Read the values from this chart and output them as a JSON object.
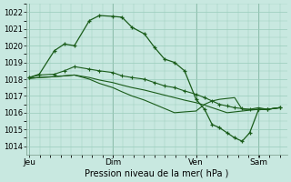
{
  "bg_color": "#c8e8e0",
  "grid_color": "#99ccbb",
  "line_color": "#1a5c1a",
  "title": "Pression niveau de la mer( hPa )",
  "ylim": [
    1013.5,
    1022.5
  ],
  "yticks": [
    1014,
    1015,
    1016,
    1017,
    1018,
    1019,
    1020,
    1021,
    1022
  ],
  "xlim": [
    0,
    1.0
  ],
  "day_labels": [
    "Jeu",
    "Dim",
    "Ven",
    "Sam"
  ],
  "day_positions": [
    0.0,
    0.333,
    0.666,
    0.916
  ],
  "series1_x": [
    0.0,
    0.04,
    0.1,
    0.14,
    0.18,
    0.24,
    0.28,
    0.333,
    0.37,
    0.41,
    0.46,
    0.5,
    0.54,
    0.58,
    0.62,
    0.666,
    0.7,
    0.73,
    0.76,
    0.79,
    0.82,
    0.85,
    0.88,
    0.916,
    0.95,
    1.0
  ],
  "series1_y": [
    1018.1,
    1018.3,
    1019.7,
    1020.1,
    1020.0,
    1021.5,
    1021.8,
    1021.75,
    1021.7,
    1021.1,
    1020.7,
    1019.9,
    1019.2,
    1019.0,
    1018.5,
    1016.8,
    1016.2,
    1015.3,
    1015.1,
    1014.8,
    1014.5,
    1014.3,
    1014.8,
    1016.2,
    1016.2,
    1016.3
  ],
  "series2_x": [
    0.0,
    0.04,
    0.1,
    0.14,
    0.18,
    0.24,
    0.28,
    0.333,
    0.37,
    0.41,
    0.46,
    0.5,
    0.54,
    0.58,
    0.62,
    0.666,
    0.7,
    0.73,
    0.76,
    0.79,
    0.82,
    0.85,
    0.88,
    0.916,
    0.95,
    1.0
  ],
  "series2_y": [
    1018.1,
    1018.25,
    1018.3,
    1018.5,
    1018.75,
    1018.6,
    1018.5,
    1018.4,
    1018.2,
    1018.1,
    1018.0,
    1017.8,
    1017.6,
    1017.5,
    1017.3,
    1017.1,
    1016.9,
    1016.7,
    1016.5,
    1016.4,
    1016.3,
    1016.25,
    1016.2,
    1016.2,
    1016.2,
    1016.3
  ],
  "series3_x": [
    0.0,
    0.04,
    0.1,
    0.14,
    0.18,
    0.24,
    0.28,
    0.333,
    0.37,
    0.41,
    0.46,
    0.5,
    0.54,
    0.58,
    0.62,
    0.666,
    0.7,
    0.73,
    0.76,
    0.79,
    0.82,
    0.85,
    0.88,
    0.916,
    0.95,
    1.0
  ],
  "series3_y": [
    1018.05,
    1018.1,
    1018.15,
    1018.2,
    1018.25,
    1018.1,
    1017.95,
    1017.8,
    1017.65,
    1017.5,
    1017.35,
    1017.2,
    1017.05,
    1016.9,
    1016.75,
    1016.6,
    1016.45,
    1016.3,
    1016.15,
    1016.0,
    1016.05,
    1016.1,
    1016.15,
    1016.2,
    1016.2,
    1016.3
  ],
  "series4_x": [
    0.0,
    0.04,
    0.1,
    0.14,
    0.18,
    0.24,
    0.28,
    0.333,
    0.37,
    0.41,
    0.46,
    0.5,
    0.54,
    0.58,
    0.62,
    0.666,
    0.7,
    0.73,
    0.76,
    0.79,
    0.82,
    0.85,
    0.88,
    0.916,
    0.95,
    1.0
  ],
  "series4_y": [
    1018.05,
    1018.1,
    1018.15,
    1018.2,
    1018.25,
    1018.0,
    1017.75,
    1017.5,
    1017.25,
    1017.0,
    1016.75,
    1016.5,
    1016.25,
    1016.0,
    1016.05,
    1016.1,
    1016.5,
    1016.7,
    1016.8,
    1016.85,
    1016.9,
    1016.2,
    1016.2,
    1016.3,
    1016.2,
    1016.3
  ]
}
